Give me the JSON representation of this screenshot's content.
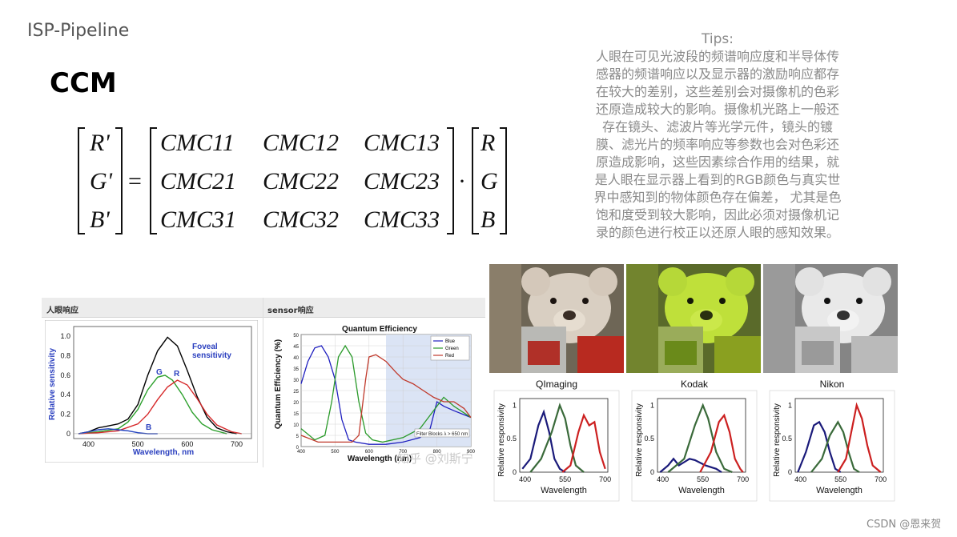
{
  "slide": {
    "title": "ISP-Pipeline",
    "heading": "CCM",
    "footer_watermark": "CSDN @恩来贺",
    "image_watermark": "知乎 @刘斯宁"
  },
  "tips": {
    "title": "Tips:",
    "lines": [
      "人眼在可见光波段的频谱响应度和半导体传",
      "感器的频谱响应以及显示器的激励响应都存",
      "在较大的差别，这些差别会对摄像机的色彩",
      "还原造成较大的影响。摄像机光路上一般还",
      "存在镜头、滤波片等光学元件，镜头的镀",
      "膜、滤光片的频率响应等参数也会对色彩还",
      "原造成影响，这些因素综合作用的结果，就",
      "是人眼在显示器上看到的RGB颜色与真实世",
      "界中感知到的物体颜色存在偏差， 尤其是色",
      "饱和度受到较大影响，因此必须对摄像机记",
      "录的颜色进行校正以还原人眼的感知效果。"
    ]
  },
  "matrix": {
    "lhs": [
      "R'",
      "G'",
      "B'"
    ],
    "equals": "=",
    "dot": "·",
    "rows": [
      [
        "CMC11",
        "CMC12",
        "CMC13"
      ],
      [
        "CMC21",
        "CMC22",
        "CMC23"
      ],
      [
        "CMC31",
        "CMC32",
        "CMC33"
      ]
    ],
    "rhs": [
      "R",
      "G",
      "B"
    ]
  },
  "eye_panel": {
    "header": "人眼响应",
    "xlabel": "Wavelength, nm",
    "ylabel": "Relative sensitivity",
    "label_foveal": "Foveal",
    "label_sensitivity": "sensitivity",
    "label_g": "G",
    "label_r": "R",
    "label_b": "B",
    "xticks": [
      "400",
      "500",
      "600",
      "700"
    ],
    "yticks": [
      "0",
      "0.2",
      "0.4",
      "0.6",
      "0.8",
      "1.0"
    ]
  },
  "sensor_panel": {
    "header": "sensor响应",
    "title": "Quantum Efficiency",
    "xlabel": "Wavelength (nm)",
    "ylabel": "Quantum Efficiency (%)",
    "legend": [
      "Blue",
      "Green",
      "Red"
    ],
    "note": "Filter Blocks λ > 650 nm",
    "xticks": [
      "400",
      "500",
      "600",
      "700",
      "800",
      "900"
    ],
    "yticks": [
      "0",
      "5",
      "10",
      "15",
      "20",
      "25",
      "30",
      "35",
      "40",
      "45",
      "50"
    ]
  },
  "cameras": {
    "labels": [
      "QImaging",
      "Kodak",
      "Nikon"
    ],
    "xlabel": "Wavelength",
    "ylabel": "Relative responsivity",
    "xticks": [
      "400",
      "550",
      "700"
    ],
    "yticks": [
      "0",
      "0.5",
      "1"
    ]
  },
  "chart_data": [
    {
      "type": "line",
      "title": "",
      "xlabel": "Wavelength, nm",
      "ylabel": "Relative sensitivity",
      "xlim": [
        370,
        730
      ],
      "ylim": [
        -0.05,
        1.1
      ],
      "series": [
        {
          "name": "Foveal sensitivity",
          "color": "#000000",
          "x": [
            380,
            400,
            420,
            440,
            460,
            480,
            500,
            520,
            540,
            560,
            580,
            600,
            620,
            640,
            660,
            680,
            700
          ],
          "y": [
            0.0,
            0.02,
            0.06,
            0.08,
            0.1,
            0.15,
            0.3,
            0.6,
            0.85,
            0.99,
            0.9,
            0.65,
            0.38,
            0.17,
            0.06,
            0.02,
            0.0
          ]
        },
        {
          "name": "G",
          "color": "#2ca02c",
          "x": [
            380,
            420,
            460,
            480,
            500,
            520,
            540,
            555,
            570,
            590,
            610,
            630,
            650,
            680
          ],
          "y": [
            0.0,
            0.02,
            0.05,
            0.12,
            0.25,
            0.45,
            0.58,
            0.6,
            0.55,
            0.4,
            0.22,
            0.1,
            0.04,
            0.0
          ]
        },
        {
          "name": "R",
          "color": "#d62728",
          "x": [
            380,
            420,
            460,
            500,
            520,
            540,
            560,
            580,
            600,
            620,
            640,
            660,
            690,
            710
          ],
          "y": [
            0.0,
            0.01,
            0.03,
            0.1,
            0.2,
            0.35,
            0.48,
            0.55,
            0.5,
            0.36,
            0.2,
            0.09,
            0.02,
            0.0
          ]
        },
        {
          "name": "B",
          "color": "#1f3fbf",
          "x": [
            380,
            400,
            420,
            440,
            460,
            480,
            500,
            520,
            540
          ],
          "y": [
            0.0,
            0.02,
            0.04,
            0.05,
            0.04,
            0.03,
            0.01,
            0.0,
            0.0
          ]
        }
      ]
    },
    {
      "type": "line",
      "title": "Quantum Efficiency",
      "xlabel": "Wavelength (nm)",
      "ylabel": "Quantum Efficiency (%)",
      "xlim": [
        400,
        900
      ],
      "ylim": [
        0,
        50
      ],
      "series": [
        {
          "name": "Blue",
          "color": "#1f1fbf",
          "x": [
            400,
            420,
            440,
            460,
            480,
            500,
            520,
            540,
            560,
            600,
            650,
            700,
            750,
            780,
            800,
            820,
            850,
            900
          ],
          "y": [
            28,
            38,
            44,
            45,
            40,
            30,
            12,
            3,
            2,
            1,
            1,
            2,
            4,
            8,
            20,
            18,
            16,
            13
          ]
        },
        {
          "name": "Green",
          "color": "#2a9a2a",
          "x": [
            400,
            440,
            470,
            490,
            510,
            530,
            550,
            570,
            590,
            610,
            640,
            700,
            750,
            800,
            820,
            850,
            900
          ],
          "y": [
            8,
            3,
            5,
            20,
            40,
            45,
            40,
            20,
            6,
            3,
            2,
            4,
            8,
            18,
            22,
            18,
            13
          ]
        },
        {
          "name": "Red",
          "color": "#c0392b",
          "x": [
            400,
            450,
            500,
            550,
            570,
            590,
            600,
            620,
            650,
            680,
            700,
            730,
            760,
            790,
            820,
            850,
            880,
            900
          ],
          "y": [
            5,
            2,
            2,
            2,
            5,
            30,
            40,
            41,
            38,
            33,
            30,
            28,
            25,
            22,
            20,
            20,
            17,
            13
          ]
        }
      ]
    },
    {
      "type": "line",
      "title": "QImaging",
      "xlabel": "Wavelength",
      "ylabel": "Relative responsivity",
      "xlim": [
        380,
        710
      ],
      "ylim": [
        0,
        1.1
      ],
      "series": [
        {
          "name": "",
          "color": "#1a1a7a",
          "x": [
            390,
            420,
            450,
            470,
            490,
            510,
            530,
            550
          ],
          "y": [
            0.05,
            0.2,
            0.7,
            0.9,
            0.6,
            0.2,
            0.05,
            0.0
          ]
        },
        {
          "name": "",
          "color": "#3a6a3a",
          "x": [
            420,
            460,
            500,
            530,
            550,
            570,
            590,
            620
          ],
          "y": [
            0.0,
            0.2,
            0.6,
            1.0,
            0.8,
            0.4,
            0.1,
            0.0
          ]
        },
        {
          "name": "",
          "color": "#cc2020",
          "x": [
            540,
            570,
            600,
            620,
            640,
            660,
            680,
            700
          ],
          "y": [
            0.0,
            0.1,
            0.6,
            0.85,
            0.7,
            0.75,
            0.3,
            0.05
          ]
        }
      ]
    },
    {
      "type": "line",
      "title": "Kodak",
      "xlabel": "Wavelength",
      "ylabel": "Relative responsivity",
      "xlim": [
        380,
        710
      ],
      "ylim": [
        0,
        1.1
      ],
      "series": [
        {
          "name": "",
          "color": "#1a1a7a",
          "x": [
            390,
            420,
            440,
            460,
            480,
            500,
            520,
            560,
            600,
            620
          ],
          "y": [
            0.0,
            0.1,
            0.2,
            0.1,
            0.15,
            0.2,
            0.18,
            0.1,
            0.05,
            0.0
          ]
        },
        {
          "name": "",
          "color": "#3a6a3a",
          "x": [
            420,
            480,
            520,
            550,
            570,
            600,
            630,
            660
          ],
          "y": [
            0.0,
            0.2,
            0.7,
            1.0,
            0.8,
            0.3,
            0.05,
            0.0
          ]
        },
        {
          "name": "",
          "color": "#cc2020",
          "x": [
            540,
            580,
            610,
            630,
            650,
            670,
            690,
            700
          ],
          "y": [
            0.0,
            0.3,
            0.75,
            0.85,
            0.6,
            0.2,
            0.05,
            0.0
          ]
        }
      ]
    },
    {
      "type": "line",
      "title": "Nikon",
      "xlabel": "Wavelength",
      "ylabel": "Relative responsivity",
      "xlim": [
        380,
        710
      ],
      "ylim": [
        0,
        1.1
      ],
      "series": [
        {
          "name": "",
          "color": "#1a1a7a",
          "x": [
            390,
            420,
            450,
            470,
            490,
            510,
            530,
            550
          ],
          "y": [
            0.0,
            0.3,
            0.7,
            0.75,
            0.6,
            0.3,
            0.05,
            0.0
          ]
        },
        {
          "name": "",
          "color": "#3a6a3a",
          "x": [
            440,
            480,
            510,
            540,
            560,
            580,
            600,
            620
          ],
          "y": [
            0.0,
            0.2,
            0.55,
            0.75,
            0.6,
            0.3,
            0.05,
            0.0
          ]
        },
        {
          "name": "",
          "color": "#cc2020",
          "x": [
            540,
            570,
            590,
            610,
            630,
            650,
            670,
            700
          ],
          "y": [
            0.0,
            0.2,
            0.6,
            1.0,
            0.8,
            0.4,
            0.1,
            0.0
          ]
        }
      ]
    }
  ]
}
